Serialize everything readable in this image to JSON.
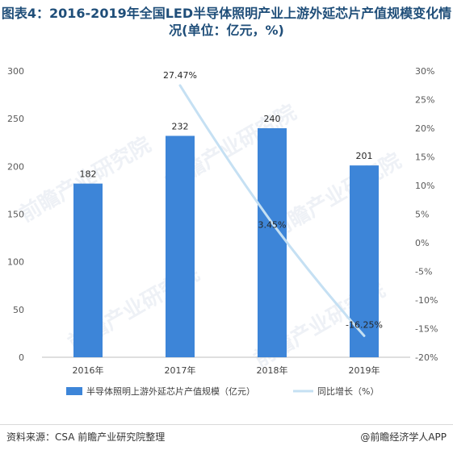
{
  "title": "图表4：2016-2019年全国LED半导体照明产业上游外延芯片产值规模变化情况(单位：亿元，%)",
  "footer": {
    "source": "资料来源：CSA 前瞻产业研究院整理",
    "brand": "@前瞻经济学人APP"
  },
  "watermark": "前瞻产业研究院",
  "chart_data": {
    "type": "bar",
    "categories": [
      "2016年",
      "2017年",
      "2018年",
      "2019年"
    ],
    "series": [
      {
        "name": "半导体照明上游外延芯片产值规模（亿元）",
        "type": "bar",
        "axis": "left",
        "values": [
          182,
          232,
          240,
          201
        ],
        "labels": [
          "182",
          "232",
          "240",
          "201"
        ],
        "color": "#3d85d8"
      },
      {
        "name": "同比增长（%）",
        "type": "line",
        "axis": "right",
        "values": [
          null,
          27.47,
          3.45,
          -16.25
        ],
        "labels": [
          "",
          "27.47%",
          "3.45%",
          "-16.25%"
        ],
        "color": "#c5e0f3"
      }
    ],
    "y_left": {
      "min": 0,
      "max": 300,
      "ticks": [
        "0",
        "50",
        "100",
        "150",
        "200",
        "250",
        "300"
      ]
    },
    "y_right": {
      "min": -20,
      "max": 30,
      "ticks": [
        "-20%",
        "-15%",
        "-10%",
        "-5%",
        "0%",
        "5%",
        "10%",
        "15%",
        "20%",
        "25%",
        "30%"
      ]
    },
    "grid": false,
    "legend": "bottom"
  }
}
